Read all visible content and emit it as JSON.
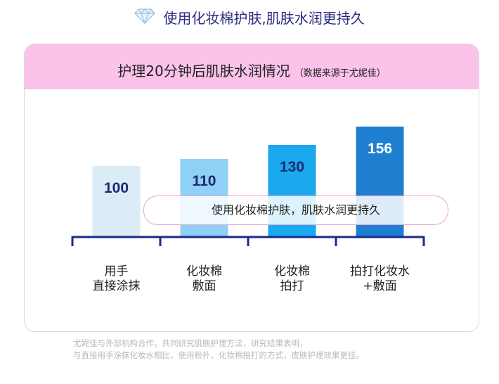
{
  "headline": {
    "icon": "diamond-icon",
    "text": "使用化妆棉护肤,肌肤水润更持久"
  },
  "card_header": {
    "title": "护理20分钟后肌肤水润情况",
    "source": "（数据来源于尤妮佳）"
  },
  "pill_text": "使用化妆棉护肤，肌肤水润更持久",
  "footnote": [
    "尤妮佳与外部机构合作，共同研究肌肤护理方法，研究结果表明，",
    "与直接用手涂抹化妆水相比，使用粉扑、化妆棉拍打的方式，皮肤护理效果更佳。"
  ],
  "colors": {
    "header_pink": "#fbc2ea",
    "axis": "#1b2a8c",
    "bars": [
      "#dcecf7",
      "#8fd0f6",
      "#1aa9ee",
      "#1e7fd0"
    ],
    "value_text": [
      "#1b2a6e",
      "#1b2a6e",
      "#1b2a6e",
      "#ffffff"
    ]
  },
  "chart_data": {
    "type": "bar",
    "title": "护理20分钟后肌肤水润情况",
    "categories": [
      [
        "用手",
        "直接涂抹"
      ],
      [
        "化妆棉",
        "敷面"
      ],
      [
        "化妆棉",
        "拍打"
      ],
      [
        "拍打化妆水",
        "+敷面"
      ]
    ],
    "values": [
      100,
      110,
      130,
      156
    ],
    "value_labels": [
      "100",
      "110",
      "130",
      "156"
    ],
    "ylim": [
      0,
      160
    ],
    "grid": false
  }
}
